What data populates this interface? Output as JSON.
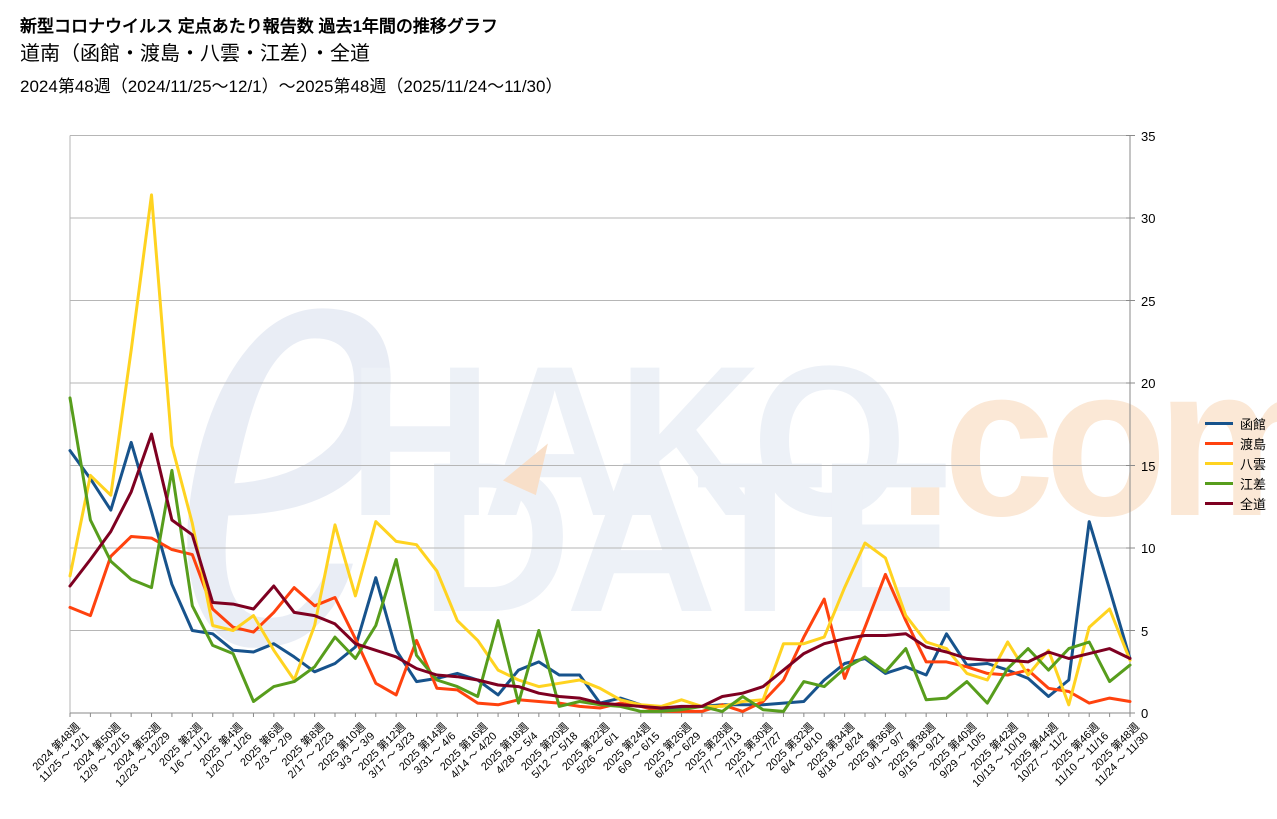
{
  "header": {
    "title": "新型コロナウイルス 定点あたり報告数 過去1年間の推移グラフ",
    "subtitle": "道南（函館・渡島・八雲・江差）・全道",
    "period": "2024第48週（2024/11/25〜12/1）〜2025第48週（2025/11/24〜11/30）"
  },
  "watermark": {
    "initial": "e",
    "word1": "HAKO",
    "tld": ".com",
    "word2": "DATE"
  },
  "chart_data": {
    "type": "line",
    "title": "新型コロナウイルス 定点あたり報告数 過去1年間の推移グラフ",
    "subtitle": "道南（函館・渡島・八雲・江差）・全道",
    "ylim": [
      0,
      35
    ],
    "ytick_step": 5,
    "grid": "horizontal",
    "legend_position": "right",
    "y_axis_side": "right",
    "weeks_total": 53,
    "label_every": 2,
    "axis_color": "#8a8a8a",
    "grid_color": "#b6b6b6",
    "x_labels": [
      {
        "week": "2024 第48週",
        "range": "11/25 〜 12/1"
      },
      {
        "week": "2024 第50週",
        "range": "12/9 〜 12/15"
      },
      {
        "week": "2024 第52週",
        "range": "12/23 〜 12/29"
      },
      {
        "week": "2025 第2週",
        "range": "1/6 〜 1/12"
      },
      {
        "week": "2025 第4週",
        "range": "1/20 〜 1/26"
      },
      {
        "week": "2025 第6週",
        "range": "2/3 〜 2/9"
      },
      {
        "week": "2025 第8週",
        "range": "2/17 〜 2/23"
      },
      {
        "week": "2025 第10週",
        "range": "3/3 〜 3/9"
      },
      {
        "week": "2025 第12週",
        "range": "3/17 〜 3/23"
      },
      {
        "week": "2025 第14週",
        "range": "3/31 〜 4/6"
      },
      {
        "week": "2025 第16週",
        "range": "4/14 〜 4/20"
      },
      {
        "week": "2025 第18週",
        "range": "4/28 〜 5/4"
      },
      {
        "week": "2025 第20週",
        "range": "5/12 〜 5/18"
      },
      {
        "week": "2025 第22週",
        "range": "5/26 〜 6/1"
      },
      {
        "week": "2025 第24週",
        "range": "6/9 〜 6/15"
      },
      {
        "week": "2025 第26週",
        "range": "6/23 〜 6/29"
      },
      {
        "week": "2025 第28週",
        "range": "7/7 〜 7/13"
      },
      {
        "week": "2025 第30週",
        "range": "7/21 〜 7/27"
      },
      {
        "week": "2025 第32週",
        "range": "8/4 〜 8/10"
      },
      {
        "week": "2025 第34週",
        "range": "8/18 〜 8/24"
      },
      {
        "week": "2025 第36週",
        "range": "9/1 〜 9/7"
      },
      {
        "week": "2025 第38週",
        "range": "9/15 〜 9/21"
      },
      {
        "week": "2025 第40週",
        "range": "9/29 〜 10/5"
      },
      {
        "week": "2025 第42週",
        "range": "10/13 〜 10/19"
      },
      {
        "week": "2025 第44週",
        "range": "10/27 〜 11/2"
      },
      {
        "week": "2025 第46週",
        "range": "11/10 〜 11/16"
      },
      {
        "week": "2025 第48週",
        "range": "11/24 〜 11/30"
      }
    ],
    "series": [
      {
        "name": "函館",
        "color": "#17538c",
        "values": [
          15.9,
          14.2,
          12.3,
          16.4,
          12.2,
          7.8,
          5.0,
          4.8,
          3.8,
          3.7,
          4.2,
          3.4,
          2.5,
          3.0,
          4.0,
          8.2,
          3.8,
          1.9,
          2.1,
          2.4,
          2.0,
          1.1,
          2.6,
          3.1,
          2.3,
          2.3,
          0.6,
          0.9,
          0.5,
          0.2,
          0.3,
          0.4,
          0.5,
          0.5,
          0.5,
          0.6,
          0.7,
          2.0,
          3.0,
          3.3,
          2.4,
          2.8,
          2.3,
          4.8,
          2.9,
          3.0,
          2.6,
          2.1,
          1.0,
          2.0,
          11.6,
          7.5,
          3.3
        ]
      },
      {
        "name": "渡島",
        "color": "#ff420e",
        "values": [
          6.4,
          5.9,
          9.5,
          10.7,
          10.6,
          9.9,
          9.6,
          6.3,
          5.2,
          4.9,
          6.1,
          7.6,
          6.5,
          7.0,
          4.5,
          1.8,
          1.1,
          4.4,
          1.5,
          1.4,
          0.6,
          0.5,
          0.8,
          0.7,
          0.6,
          0.4,
          0.3,
          0.6,
          0.4,
          0.1,
          0.1,
          0.1,
          0.5,
          0.1,
          0.7,
          2.0,
          4.6,
          6.9,
          2.1,
          5.2,
          8.4,
          5.6,
          3.1,
          3.1,
          2.8,
          2.4,
          2.3,
          2.6,
          1.5,
          1.3,
          0.6,
          0.9,
          0.7
        ]
      },
      {
        "name": "八雲",
        "color": "#ffd320",
        "values": [
          8.3,
          14.4,
          13.2,
          22.0,
          31.4,
          16.2,
          11.5,
          5.3,
          5.0,
          5.9,
          3.8,
          2.0,
          5.3,
          11.4,
          7.1,
          11.6,
          10.4,
          10.2,
          8.6,
          5.6,
          4.4,
          2.6,
          2.0,
          1.6,
          1.8,
          2.0,
          1.5,
          0.8,
          0.5,
          0.4,
          0.8,
          0.4,
          0.4,
          0.7,
          0.8,
          4.2,
          4.2,
          4.6,
          7.6,
          10.3,
          9.4,
          5.9,
          4.3,
          3.9,
          2.4,
          2.0,
          4.3,
          2.3,
          3.8,
          0.5,
          5.2,
          6.3,
          3.2
        ]
      },
      {
        "name": "江差",
        "color": "#579d1c",
        "values": [
          19.1,
          11.7,
          9.2,
          8.1,
          7.6,
          14.7,
          6.5,
          4.1,
          3.6,
          0.7,
          1.6,
          1.9,
          2.8,
          4.6,
          3.3,
          5.3,
          9.3,
          3.5,
          2.0,
          1.6,
          1.0,
          5.6,
          0.6,
          5.0,
          0.4,
          0.7,
          0.5,
          0.4,
          0.1,
          0.1,
          0.2,
          0.4,
          0.1,
          1.0,
          0.2,
          0.1,
          1.9,
          1.6,
          2.7,
          3.4,
          2.5,
          3.9,
          0.8,
          0.9,
          1.9,
          0.6,
          2.7,
          3.9,
          2.6,
          3.9,
          4.3,
          1.9,
          2.9
        ]
      },
      {
        "name": "全道",
        "color": "#7e0021",
        "values": [
          7.7,
          9.3,
          11.0,
          13.4,
          16.9,
          11.7,
          10.8,
          6.7,
          6.6,
          6.3,
          7.7,
          6.1,
          5.9,
          5.4,
          4.2,
          3.8,
          3.4,
          2.7,
          2.3,
          2.2,
          2.0,
          1.7,
          1.6,
          1.2,
          1.0,
          0.9,
          0.6,
          0.5,
          0.4,
          0.3,
          0.4,
          0.4,
          1.0,
          1.2,
          1.6,
          2.6,
          3.6,
          4.2,
          4.5,
          4.7,
          4.7,
          4.8,
          4.0,
          3.7,
          3.3,
          3.2,
          3.2,
          3.1,
          3.7,
          3.3,
          3.6,
          3.9,
          3.3
        ]
      }
    ]
  }
}
